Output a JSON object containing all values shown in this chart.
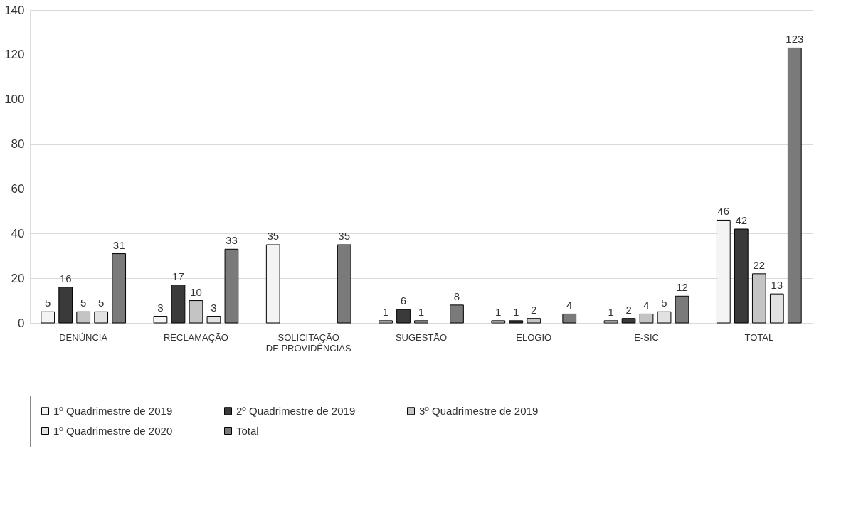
{
  "chart_data": {
    "type": "bar",
    "categories": [
      "DENÚNCIA",
      "RECLAMAÇÃO",
      "SOLICITAÇÃO DE PROVIDÊNCIAS",
      "SUGESTÃO",
      "ELOGIO",
      "E-SIC",
      "TOTAL"
    ],
    "series": [
      {
        "name": "1º Quadrimestre de 2019",
        "color": "#f4f4f4",
        "values": [
          5,
          3,
          35,
          1,
          1,
          1,
          46
        ]
      },
      {
        "name": "2º Quadrimestre de 2019",
        "color": "#3a3a3a",
        "values": [
          16,
          17,
          null,
          6,
          1,
          2,
          42
        ]
      },
      {
        "name": "3º Quadrimestre de 2019",
        "color": "#c4c4c4",
        "values": [
          5,
          10,
          null,
          1,
          2,
          4,
          22
        ]
      },
      {
        "name": "1º Quadrimestre de 2020",
        "color": "#e2e2e2",
        "values": [
          5,
          3,
          null,
          null,
          null,
          5,
          13
        ]
      },
      {
        "name": "Total",
        "color": "#7a7a7a",
        "values": [
          31,
          33,
          35,
          8,
          4,
          12,
          123
        ]
      }
    ],
    "ylim": [
      0,
      140
    ],
    "yticks": [
      0,
      20,
      40,
      60,
      80,
      100,
      120,
      140
    ],
    "grid": "y",
    "legend": "bottom",
    "data_labels": true
  }
}
